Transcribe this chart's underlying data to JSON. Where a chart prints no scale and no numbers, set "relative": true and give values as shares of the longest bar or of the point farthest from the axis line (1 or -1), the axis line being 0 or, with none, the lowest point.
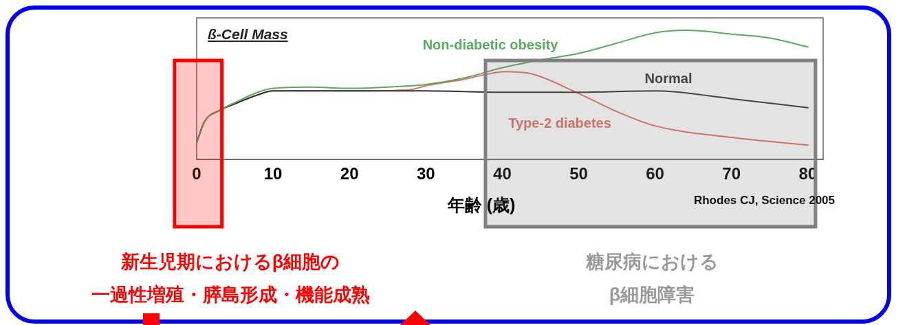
{
  "chart_data": {
    "type": "line",
    "title": "ß-Cell Mass",
    "xlabel": "年齢 (歳)",
    "relative": true,
    "xlim": [
      0,
      82
    ],
    "xticks": [
      0,
      10,
      20,
      30,
      40,
      50,
      60,
      70,
      80
    ],
    "tick_labels": "x",
    "grid": false,
    "legend": false,
    "marker": "none",
    "line_style": "solid",
    "series": [
      {
        "name": "Non-diabetic obesity",
        "color": "#5aaa5e",
        "x": [
          0,
          1,
          3,
          5,
          8,
          10,
          15,
          20,
          25,
          30,
          35,
          40,
          45,
          50,
          55,
          60,
          64,
          70,
          75,
          80
        ],
        "values": [
          0.13,
          0.29,
          0.38,
          0.44,
          0.52,
          0.55,
          0.56,
          0.55,
          0.56,
          0.58,
          0.63,
          0.71,
          0.77,
          0.82,
          0.9,
          0.98,
          1,
          0.97,
          0.94,
          0.87
        ]
      },
      {
        "name": "Normal",
        "color": "#333333",
        "x": [
          0,
          1,
          3,
          5,
          8,
          10,
          20,
          30,
          40,
          50,
          60,
          70,
          80
        ],
        "values": [
          0.13,
          0.29,
          0.38,
          0.43,
          0.5,
          0.53,
          0.53,
          0.53,
          0.52,
          0.52,
          0.53,
          0.47,
          0.4
        ]
      },
      {
        "name": "Type-2 diabetes",
        "color": "#e07060",
        "x": [
          0,
          1,
          3,
          5,
          8,
          10,
          20,
          28,
          30,
          35,
          38,
          40.3,
          44,
          50,
          55,
          60,
          70,
          80
        ],
        "values": [
          0.13,
          0.29,
          0.38,
          0.43,
          0.5,
          0.53,
          0.53,
          0.54,
          0.57,
          0.62,
          0.66,
          0.68,
          0.66,
          0.51,
          0.37,
          0.26,
          0.17,
          0.11
        ]
      }
    ],
    "bands": [
      {
        "axis": "x",
        "from": -2.9,
        "to": 3.3,
        "label": "新生児期におけるβ細胞の一過性増殖・膵島形成・機能成熟",
        "color": "#ff0000"
      },
      {
        "axis": "x",
        "from": 37.8,
        "to": 81,
        "label": "糖尿病におけるβ細胞障害",
        "color": "#808080"
      }
    ],
    "annotations": [
      "Rhodes CJ, Science 2005"
    ]
  }
}
